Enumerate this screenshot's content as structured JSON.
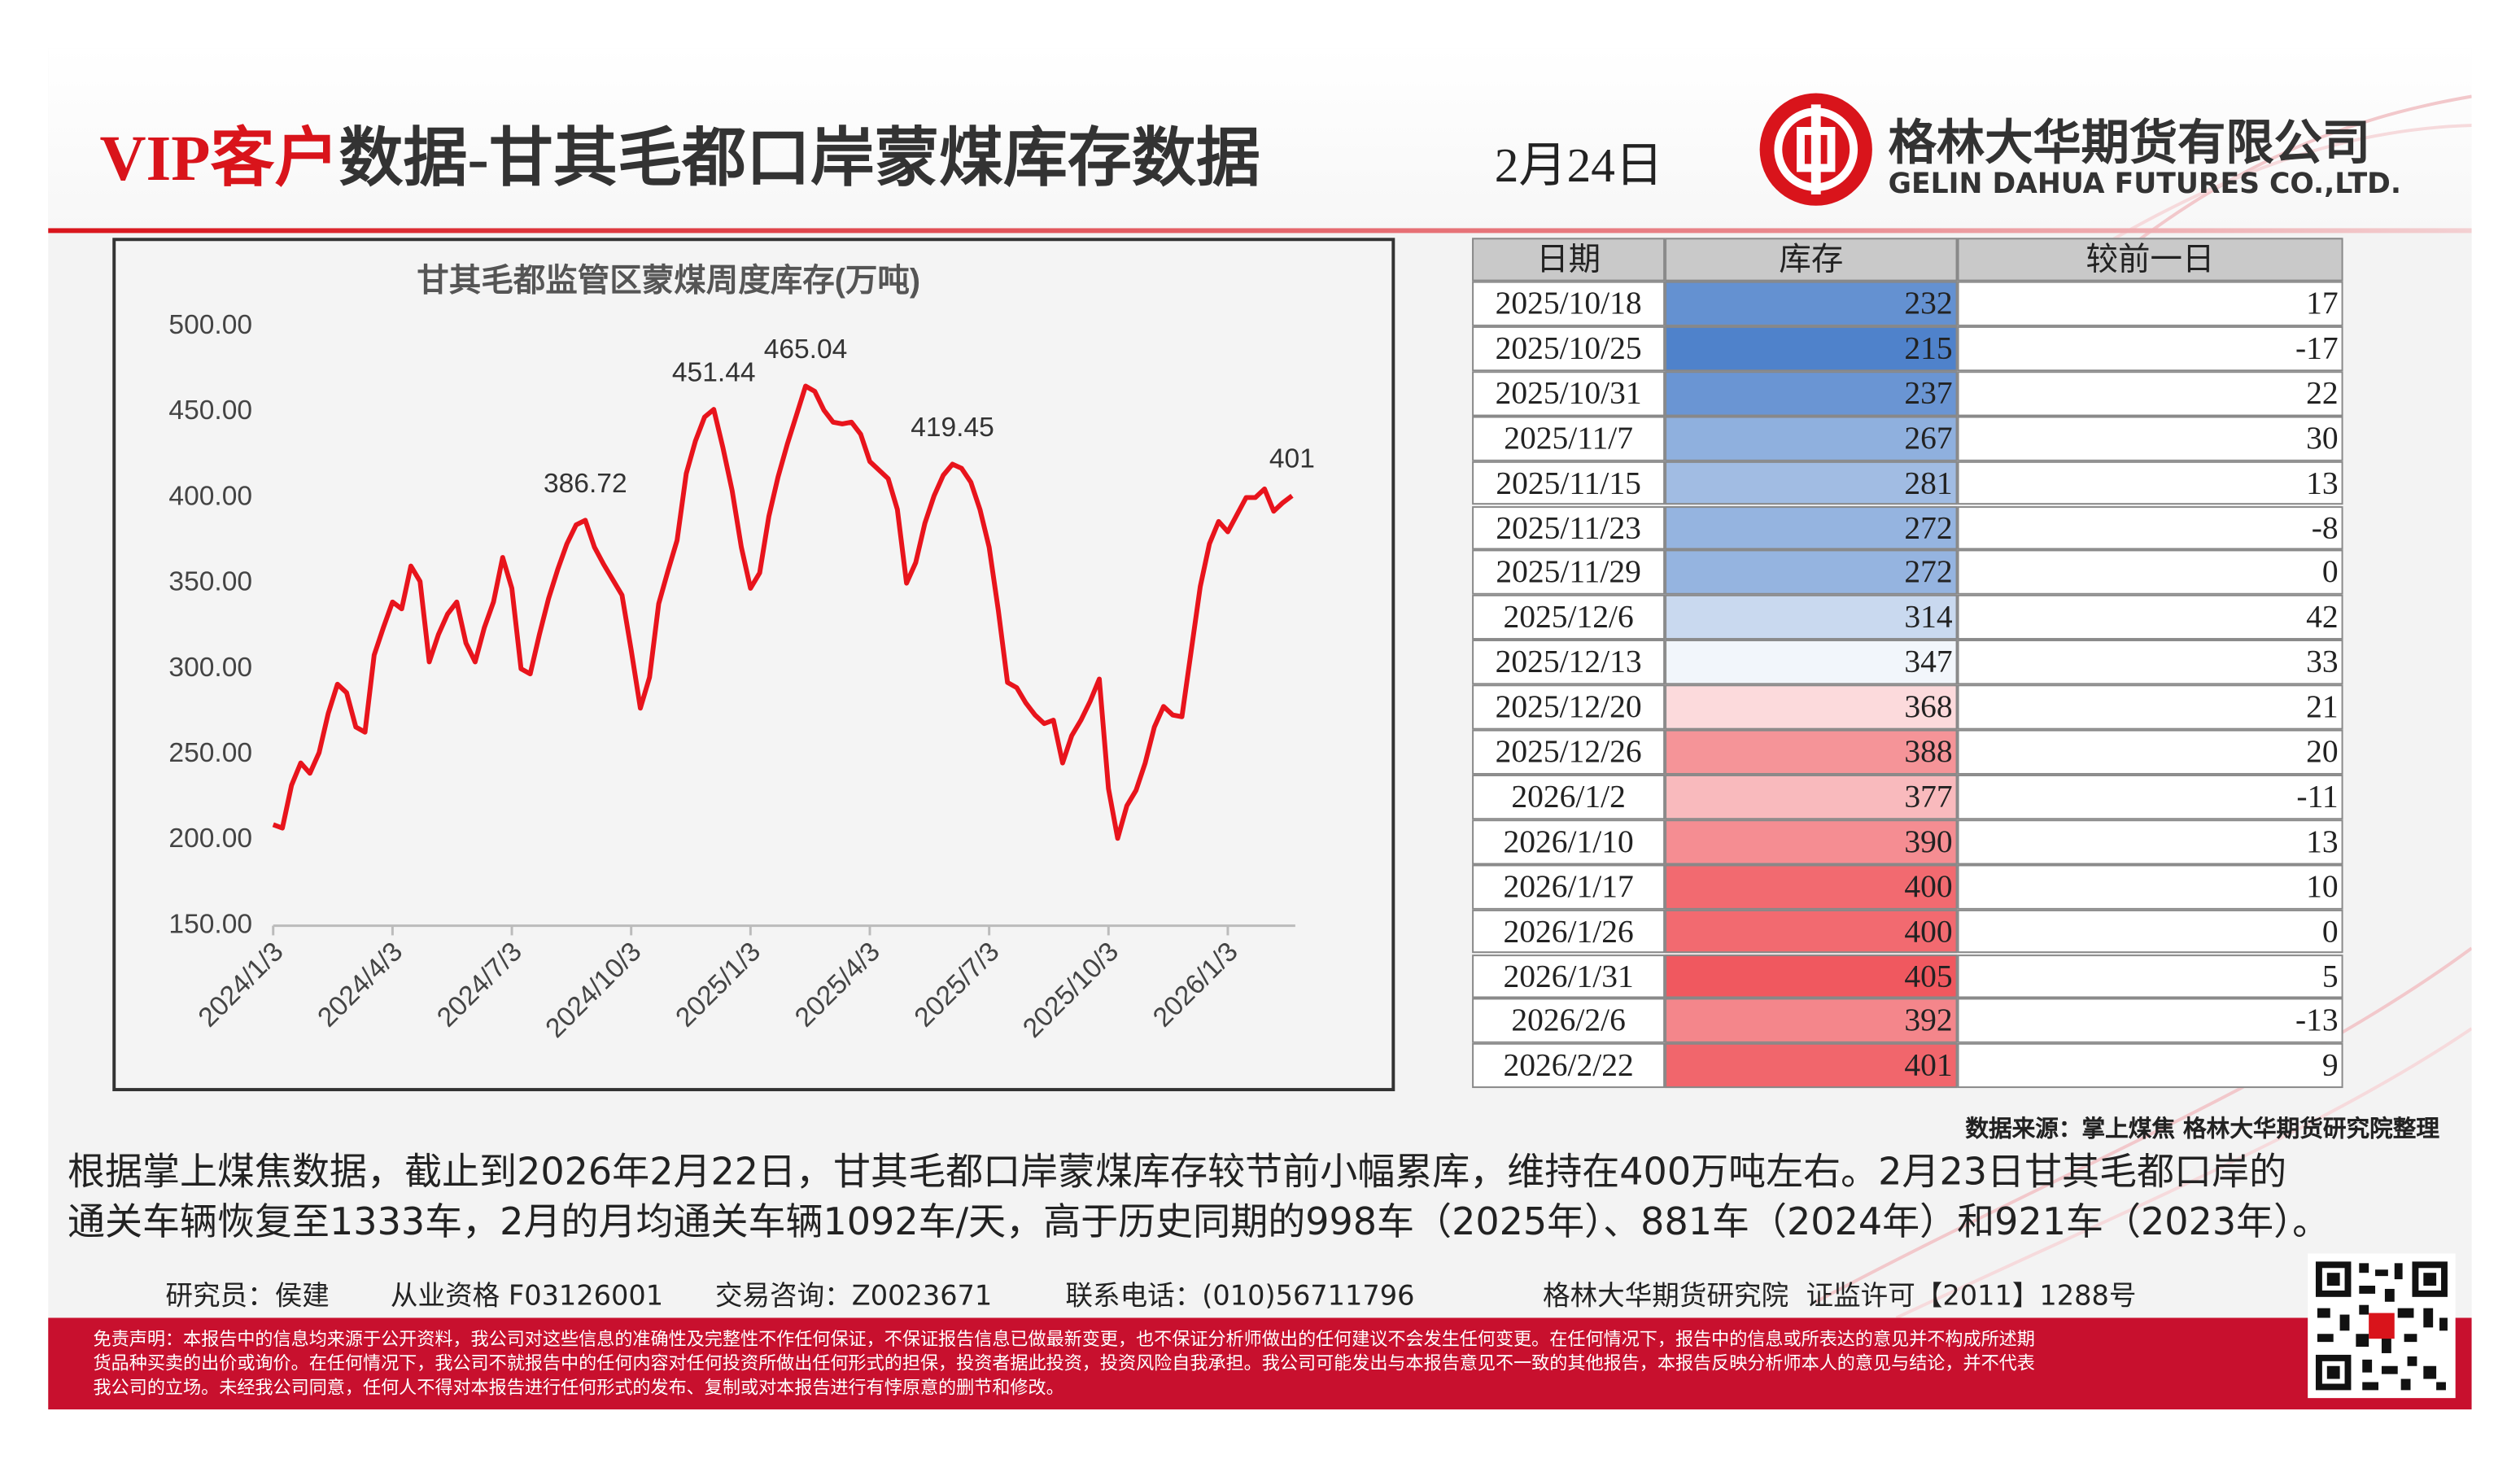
{
  "header": {
    "title_highlight": "VIP客户",
    "title": "数据-甘其毛都口岸蒙煤库存数据",
    "date": "2月24日",
    "company": "格林大华期货有限公司",
    "company_en": "GELIN DAHUA FUTURES CO.,LTD."
  },
  "chart_data": {
    "type": "line",
    "title": "甘其毛都监管区蒙煤周度库存(万吨)",
    "categories": [
      "2024/1/3",
      null,
      null,
      null,
      null,
      null,
      null,
      null,
      null,
      null,
      null,
      null,
      null,
      "2024/4/3",
      null,
      null,
      null,
      null,
      null,
      null,
      null,
      null,
      null,
      null,
      null,
      null,
      "2024/7/3",
      null,
      null,
      null,
      null,
      null,
      null,
      null,
      null,
      null,
      null,
      null,
      null,
      "2024/10/3",
      null,
      null,
      null,
      null,
      null,
      null,
      null,
      null,
      null,
      null,
      null,
      null,
      "2025/1/3",
      null,
      null,
      null,
      null,
      null,
      null,
      null,
      null,
      null,
      null,
      null,
      null,
      "2025/4/3",
      null,
      null,
      null,
      null,
      null,
      null,
      null,
      null,
      null,
      null,
      null,
      null,
      "2025/7/3",
      null,
      null,
      null,
      null,
      null,
      null,
      null,
      null,
      null,
      null,
      null,
      null,
      "2025/10/3",
      null,
      null,
      null,
      null,
      null,
      null,
      null,
      null,
      null,
      null,
      null,
      null,
      "2026/1/3",
      null,
      null,
      null,
      null,
      null,
      null,
      null
    ],
    "values": [
      209,
      207,
      232,
      245,
      239,
      251,
      274,
      291,
      286,
      266,
      263,
      308,
      324,
      339,
      335,
      360,
      351,
      304,
      320,
      332,
      339,
      315,
      304,
      324,
      339,
      365,
      347,
      300,
      297,
      320,
      341,
      358,
      373,
      384,
      386.72,
      371,
      361,
      352,
      343,
      311,
      277,
      295,
      338,
      357,
      375,
      414,
      433,
      447,
      451.44,
      429,
      404,
      371,
      347,
      356,
      389,
      412,
      431,
      448,
      465.04,
      462,
      451,
      444,
      443,
      444,
      437,
      421,
      416,
      411,
      393,
      350,
      362,
      385,
      401,
      413,
      419.45,
      417,
      409,
      393,
      371,
      334,
      292,
      289,
      280,
      273,
      268,
      270,
      245,
      261,
      270,
      281,
      294,
      230,
      201,
      220,
      229,
      245,
      266,
      278,
      273,
      272,
      310,
      348,
      373,
      386,
      380,
      390,
      400,
      400,
      405,
      392,
      397,
      401
    ],
    "value_labels": [
      null,
      null,
      null,
      null,
      null,
      null,
      null,
      null,
      null,
      null,
      null,
      null,
      null,
      null,
      null,
      null,
      null,
      null,
      null,
      null,
      null,
      null,
      null,
      null,
      null,
      null,
      null,
      null,
      null,
      null,
      null,
      null,
      null,
      null,
      "386.72",
      null,
      null,
      null,
      null,
      null,
      null,
      null,
      null,
      null,
      null,
      null,
      null,
      null,
      "451.44",
      null,
      null,
      null,
      null,
      null,
      null,
      null,
      null,
      null,
      "465.04",
      null,
      null,
      null,
      null,
      null,
      null,
      null,
      null,
      null,
      null,
      null,
      null,
      null,
      null,
      null,
      "419.45",
      null,
      null,
      null,
      null,
      null,
      null,
      null,
      null,
      null,
      null,
      null,
      null,
      null,
      null,
      null,
      null,
      null,
      null,
      null,
      null,
      null,
      null,
      null,
      null,
      null,
      null,
      null,
      null,
      null,
      null,
      null,
      null,
      null,
      null,
      null,
      null,
      "401"
    ],
    "color": "#e8141c",
    "ylim": [
      150,
      500
    ],
    "yticks": [
      {
        "value": 150,
        "label": "150.00"
      },
      {
        "value": 200,
        "label": "200.00"
      },
      {
        "value": 250,
        "label": "250.00"
      },
      {
        "value": 300,
        "label": "300.00"
      },
      {
        "value": 350,
        "label": "350.00"
      },
      {
        "value": 400,
        "label": "400.00"
      },
      {
        "value": 450,
        "label": "450.00"
      },
      {
        "value": 500,
        "label": "500.00"
      }
    ],
    "grid": false
  },
  "table": {
    "columns": [
      "日期",
      "库存",
      "较前一日"
    ],
    "rows": [
      [
        "2025/10/18",
        232,
        17
      ],
      [
        "2025/10/25",
        215,
        -17
      ],
      [
        "2025/10/31",
        237,
        22
      ],
      [
        "2025/11/7",
        267,
        30
      ],
      [
        "2025/11/15",
        281,
        13
      ],
      [
        "2025/11/23",
        272,
        -8
      ],
      [
        "2025/11/29",
        272,
        0
      ],
      [
        "2025/12/6",
        314,
        42
      ],
      [
        "2025/12/13",
        347,
        33
      ],
      [
        "2025/12/20",
        368,
        21
      ],
      [
        "2025/12/26",
        388,
        20
      ],
      [
        "2026/1/2",
        377,
        -11
      ],
      [
        "2026/1/10",
        390,
        13
      ],
      [
        "2026/1/17",
        400,
        10
      ],
      [
        "2026/1/26",
        400,
        0
      ],
      [
        "2026/1/31",
        405,
        5
      ],
      [
        "2026/2/6",
        392,
        -13
      ],
      [
        "2026/2/22",
        401,
        9
      ]
    ],
    "color_scale": {
      "low": "#4f82cb",
      "mid": "#ffffff",
      "high": "#f0585f"
    }
  },
  "source": "数据来源：掌上煤焦 格林大华期货研究院整理",
  "summary": [
    "根据掌上煤焦数据，截止到2026年2月22日，甘其毛都口岸蒙煤库存较节前小幅累库，维持在400万吨左右。2月23日甘其毛都口岸的",
    "通关车辆恢复至1333车，2月的月均通关车辆1092车/天，高于历史同期的998车（2025年）、881车（2024年）和921车（2023年）。"
  ],
  "footer": {
    "analyst": "研究员：侯建",
    "qualification": "从业资格 F03126001",
    "consult": "交易咨询：Z0023671",
    "phone": "联系电话：(010)56711796",
    "institute": "格林大华期货研究院  证监许可【2011】1288号"
  },
  "disclaimer": [
    "免责声明：本报告中的信息均来源于公开资料，我公司对这些信息的准确性及完整性不作任何保证，不保证报告信息已做最新变更，也不保证分析师做出的任何建议不会发生任何变更。在任何情况下，报告中的信息或所表达的意见并不构成所述期",
    "货品种买卖的出价或询价。在任何情况下，我公司不就报告中的任何内容对任何投资所做出任何形式的担保，投资者据此投资，投资风险自我承担。我公司可能发出与本报告意见不一致的其他报告，本报告反映分析师本人的意见与结论，并不代表",
    "我公司的立场。未经我公司同意，任何人不得对本报告进行任何形式的发布、复制或对本报告进行有悖原意的删节和修改。"
  ]
}
